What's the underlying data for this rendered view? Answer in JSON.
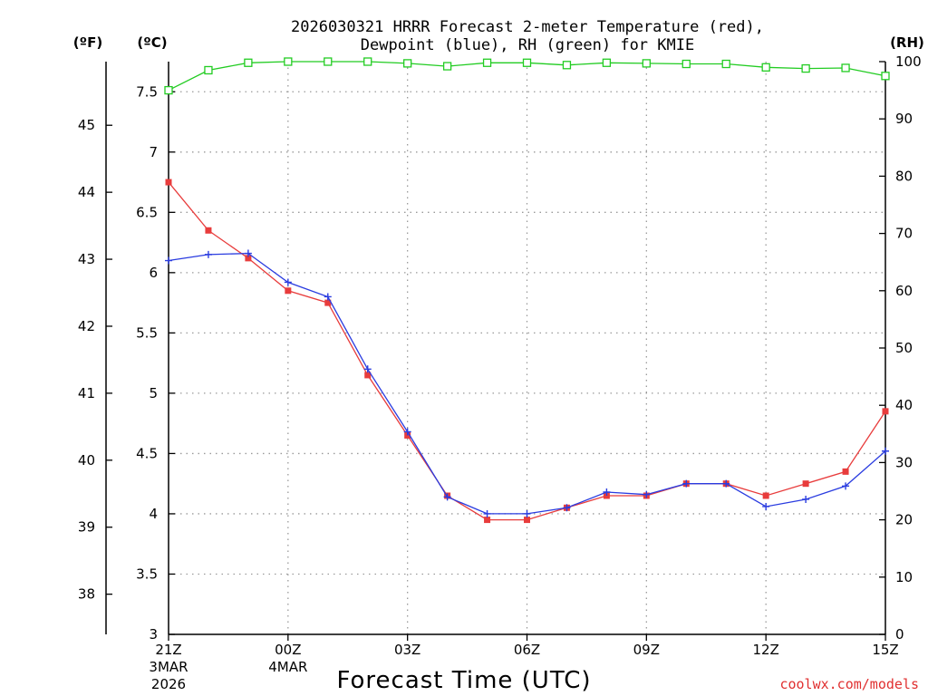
{
  "chart_data": {
    "type": "line",
    "title_line1": "2026030321 HRRR Forecast 2-meter Temperature (red),",
    "title_line2": "Dewpoint (blue), RH (green) for KMIE",
    "xlabel": "Forecast Time (UTC)",
    "credit": "coolwx.com/models",
    "units": {
      "fahrenheit": "(ºF)",
      "celsius": "(ºC)",
      "rh": "(RH)"
    },
    "x_hours": [
      0,
      1,
      2,
      3,
      4,
      5,
      6,
      7,
      8,
      9,
      10,
      11,
      12,
      13,
      14,
      15,
      16,
      17,
      18
    ],
    "x_ticks": [
      {
        "hour": 0,
        "label": "21Z",
        "sub1": "3MAR",
        "sub2": "2026"
      },
      {
        "hour": 3,
        "label": "00Z",
        "sub1": "4MAR",
        "sub2": ""
      },
      {
        "hour": 6,
        "label": "03Z",
        "sub1": "",
        "sub2": ""
      },
      {
        "hour": 9,
        "label": "06Z",
        "sub1": "",
        "sub2": ""
      },
      {
        "hour": 12,
        "label": "09Z",
        "sub1": "",
        "sub2": ""
      },
      {
        "hour": 15,
        "label": "12Z",
        "sub1": "",
        "sub2": ""
      },
      {
        "hour": 18,
        "label": "15Z",
        "sub1": "",
        "sub2": ""
      }
    ],
    "celsius_axis": {
      "range": [
        3,
        7.75
      ],
      "ticks": [
        "3",
        "3.5",
        "4",
        "4.5",
        "5",
        "5.5",
        "6",
        "6.5",
        "7",
        "7.5"
      ]
    },
    "fahrenheit_ticks": [
      "38",
      "39",
      "40",
      "41",
      "42",
      "43",
      "44",
      "45"
    ],
    "rh_axis": {
      "range": [
        0,
        100
      ],
      "ticks": [
        "0",
        "10",
        "20",
        "30",
        "40",
        "50",
        "60",
        "70",
        "80",
        "90",
        "100"
      ]
    },
    "series": [
      {
        "name": "2-meter Temperature",
        "color": "#e83c3c",
        "axis": "celsius",
        "marker": "square",
        "values": [
          6.75,
          6.35,
          6.12,
          5.85,
          5.75,
          5.15,
          4.65,
          4.15,
          3.95,
          3.95,
          4.05,
          4.15,
          4.15,
          4.25,
          4.25,
          4.15,
          4.25,
          4.35,
          4.85
        ]
      },
      {
        "name": "Dewpoint",
        "color": "#2a3ce0",
        "axis": "celsius",
        "marker": "plus",
        "values": [
          6.1,
          6.15,
          6.16,
          5.92,
          5.8,
          5.2,
          4.68,
          4.14,
          4.0,
          4.0,
          4.05,
          4.18,
          4.16,
          4.25,
          4.25,
          4.06,
          4.12,
          4.23,
          4.52
        ]
      },
      {
        "name": "RH",
        "color": "#22cc22",
        "axis": "rh",
        "marker": "open-square",
        "values": [
          95,
          98.5,
          99.8,
          100,
          100,
          100,
          99.7,
          99.2,
          99.8,
          99.8,
          99.4,
          99.8,
          99.7,
          99.6,
          99.6,
          99,
          98.8,
          98.9,
          97.5
        ]
      }
    ]
  }
}
